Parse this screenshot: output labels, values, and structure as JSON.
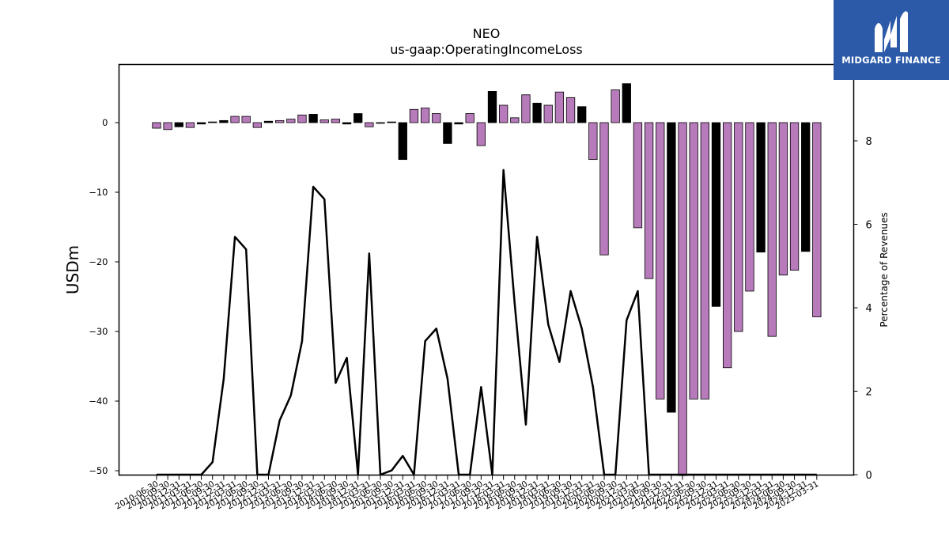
{
  "chart_data": {
    "type": "bar",
    "title": "NEO",
    "subtitle": "us-gaap:OperatingIncomeLoss",
    "ylabel": "USDm",
    "y2label": "Percentage of Revenues",
    "ylim": [
      -50.7,
      8.4
    ],
    "y2lim": [
      0,
      9.6
    ],
    "yticks": [
      0,
      -10,
      -20,
      -30,
      -40,
      -50
    ],
    "y2ticks": [
      0,
      2,
      4,
      6,
      8
    ],
    "colors": {
      "purple": "#b77bbb",
      "black": "#000000",
      "line": "#000000"
    },
    "categories": [
      "2010-06-30",
      "2010-09-30",
      "2010-12-31",
      "2011-03-31",
      "2011-06-30",
      "2011-09-30",
      "2011-12-31",
      "2012-03-31",
      "2012-06-30",
      "2012-09-30",
      "2012-12-31",
      "2013-03-31",
      "2013-06-30",
      "2013-09-30",
      "2013-12-31",
      "2014-03-31",
      "2014-06-30",
      "2014-09-30",
      "2014-12-31",
      "2015-03-31",
      "2015-06-30",
      "2015-09-30",
      "2015-12-31",
      "2016-03-31",
      "2016-06-30",
      "2016-09-30",
      "2016-12-31",
      "2017-03-31",
      "2017-06-30",
      "2017-09-30",
      "2017-12-31",
      "2018-03-31",
      "2018-06-30",
      "2018-09-30",
      "2018-12-31",
      "2019-03-31",
      "2019-06-30",
      "2019-09-30",
      "2019-12-31",
      "2020-03-31",
      "2020-06-30",
      "2020-09-30",
      "2020-12-31",
      "2021-03-31",
      "2021-06-30",
      "2021-09-30",
      "2021-12-31",
      "2022-03-31",
      "2022-06-30",
      "2022-09-30",
      "2022-12-31",
      "2023-03-31",
      "2023-06-30",
      "2023-09-30",
      "2023-12-31",
      "2024-03-31",
      "2024-06-30",
      "2024-09-30",
      "2024-12-31",
      "2025-03-31"
    ],
    "values": [
      -0.8,
      -1.0,
      -0.6,
      -0.7,
      -0.2,
      0.1,
      0.3,
      0.9,
      0.9,
      -0.7,
      0.2,
      0.3,
      0.5,
      1.1,
      1.2,
      0.4,
      0.5,
      -0.2,
      1.3,
      -0.6,
      -0.1,
      0.1,
      -5.3,
      1.9,
      2.1,
      1.3,
      -3.0,
      -0.2,
      1.3,
      -3.3,
      4.5,
      2.5,
      0.7,
      4.0,
      2.8,
      2.5,
      4.4,
      3.6,
      2.3,
      -5.3,
      -19.0,
      4.7,
      5.6,
      -15.1,
      -22.4,
      -39.7,
      -41.6,
      -50.7,
      -39.7,
      -39.7,
      -26.4,
      -35.2,
      -30.0,
      -24.2,
      -18.6,
      -30.7,
      -21.9,
      -21.2,
      -18.5,
      -27.9
    ],
    "bar_colors": [
      "purple",
      "purple",
      "black",
      "purple",
      "black",
      "black",
      "black",
      "purple",
      "purple",
      "purple",
      "black",
      "purple",
      "purple",
      "purple",
      "black",
      "purple",
      "purple",
      "black",
      "black",
      "purple",
      "black",
      "black",
      "black",
      "purple",
      "purple",
      "purple",
      "black",
      "black",
      "purple",
      "purple",
      "black",
      "purple",
      "purple",
      "purple",
      "black",
      "purple",
      "purple",
      "purple",
      "black",
      "purple",
      "purple",
      "purple",
      "black",
      "purple",
      "purple",
      "purple",
      "black",
      "purple",
      "purple",
      "purple",
      "black",
      "purple",
      "purple",
      "purple",
      "black",
      "purple",
      "purple",
      "purple",
      "black",
      "purple"
    ],
    "line_values": [
      0,
      0,
      0,
      0,
      0,
      0.3,
      2.3,
      5.7,
      5.4,
      0,
      0,
      1.3,
      1.9,
      3.2,
      6.9,
      6.6,
      2.2,
      2.8,
      0,
      5.3,
      0,
      0.1,
      0.45,
      0,
      3.2,
      3.5,
      2.3,
      0,
      0,
      2.1,
      0,
      7.3,
      4.1,
      1.2,
      5.7,
      3.6,
      2.7,
      4.4,
      3.5,
      2.1,
      0,
      0,
      3.7,
      4.4,
      0,
      0,
      0,
      0,
      0,
      0,
      0,
      0,
      0,
      0,
      0,
      0,
      0,
      0,
      0,
      0
    ]
  },
  "logo": {
    "text": "MIDGARD FINANCE",
    "bg": "#2c5aa9"
  }
}
